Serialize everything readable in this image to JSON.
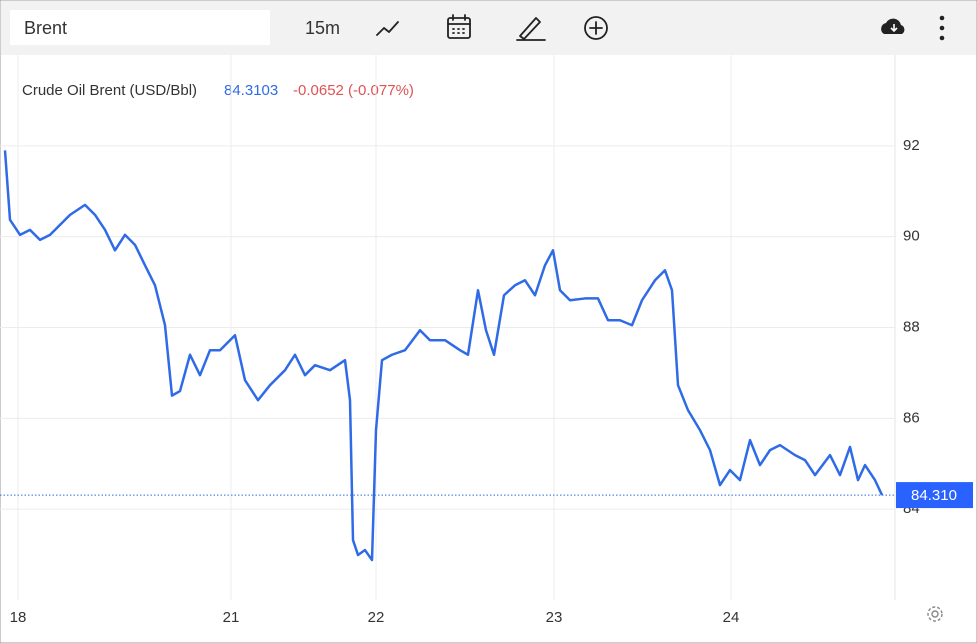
{
  "toolbar": {
    "symbol": "Brent",
    "interval": "15m"
  },
  "chart_data": {
    "type": "line",
    "legend": {
      "name": "Crude Oil Brent (USD/Bbl)",
      "price": "84.3103",
      "change": "-0.0652 (-0.077%)"
    },
    "x": [
      1,
      2,
      4,
      6,
      8,
      10,
      12,
      14,
      17,
      19,
      21,
      23,
      25,
      27,
      29,
      31,
      33,
      34.4,
      36,
      38,
      40,
      42,
      44,
      47,
      49,
      51.6,
      54,
      57,
      59,
      61,
      63,
      66,
      69,
      70,
      70.6,
      71.6,
      73,
      74.4,
      75.2,
      76.4,
      78.4,
      81,
      84,
      86,
      89,
      92,
      93.6,
      95.6,
      97.2,
      98.8,
      100.8,
      103,
      105,
      107,
      109,
      110.6,
      112,
      114,
      117,
      119.6,
      121.6,
      124,
      126.4,
      128.4,
      131,
      133,
      134.4,
      135.6,
      137.6,
      140,
      142,
      144,
      146,
      148,
      150,
      152,
      154,
      156,
      159,
      161,
      163,
      166,
      168,
      170,
      171.6,
      173,
      175,
      176.4
    ],
    "series": [
      {
        "name": "Crude Oil Brent (USD/Bbl)",
        "color": "#2f6be6",
        "values": [
          91.9,
          90.37,
          90.04,
          90.15,
          89.93,
          90.04,
          90.26,
          90.48,
          90.7,
          90.48,
          90.15,
          89.7,
          90.04,
          89.82,
          89.37,
          88.93,
          88.05,
          86.5,
          86.6,
          87.4,
          86.95,
          87.5,
          87.5,
          87.83,
          86.84,
          86.4,
          86.73,
          87.06,
          87.4,
          86.95,
          87.17,
          87.06,
          87.28,
          86.4,
          83.32,
          82.99,
          83.1,
          82.88,
          85.74,
          87.28,
          87.4,
          87.5,
          87.94,
          87.72,
          87.72,
          87.5,
          87.4,
          88.82,
          87.94,
          87.4,
          88.71,
          88.93,
          89.04,
          88.71,
          89.37,
          89.7,
          88.82,
          88.6,
          88.64,
          88.64,
          88.16,
          88.16,
          88.05,
          88.6,
          89.04,
          89.26,
          88.82,
          86.73,
          86.18,
          85.74,
          85.3,
          84.53,
          84.86,
          84.64,
          85.52,
          84.97,
          85.3,
          85.41,
          85.19,
          85.08,
          84.75,
          85.19,
          84.75,
          85.37,
          84.64,
          84.97,
          84.64,
          84.31
        ]
      }
    ],
    "current_price": {
      "value": 84.31,
      "label": "84.310"
    },
    "xlim": [
      0,
      179
    ],
    "xticks": [
      {
        "value": 3.6,
        "label": "18"
      },
      {
        "value": 46.2,
        "label": "21"
      },
      {
        "value": 75.2,
        "label": "22"
      },
      {
        "value": 110.8,
        "label": "23"
      },
      {
        "value": 146.2,
        "label": "24"
      }
    ],
    "ylim": [
      82,
      94
    ],
    "yticks": [
      84,
      86,
      88,
      90,
      92
    ],
    "grid": true
  }
}
